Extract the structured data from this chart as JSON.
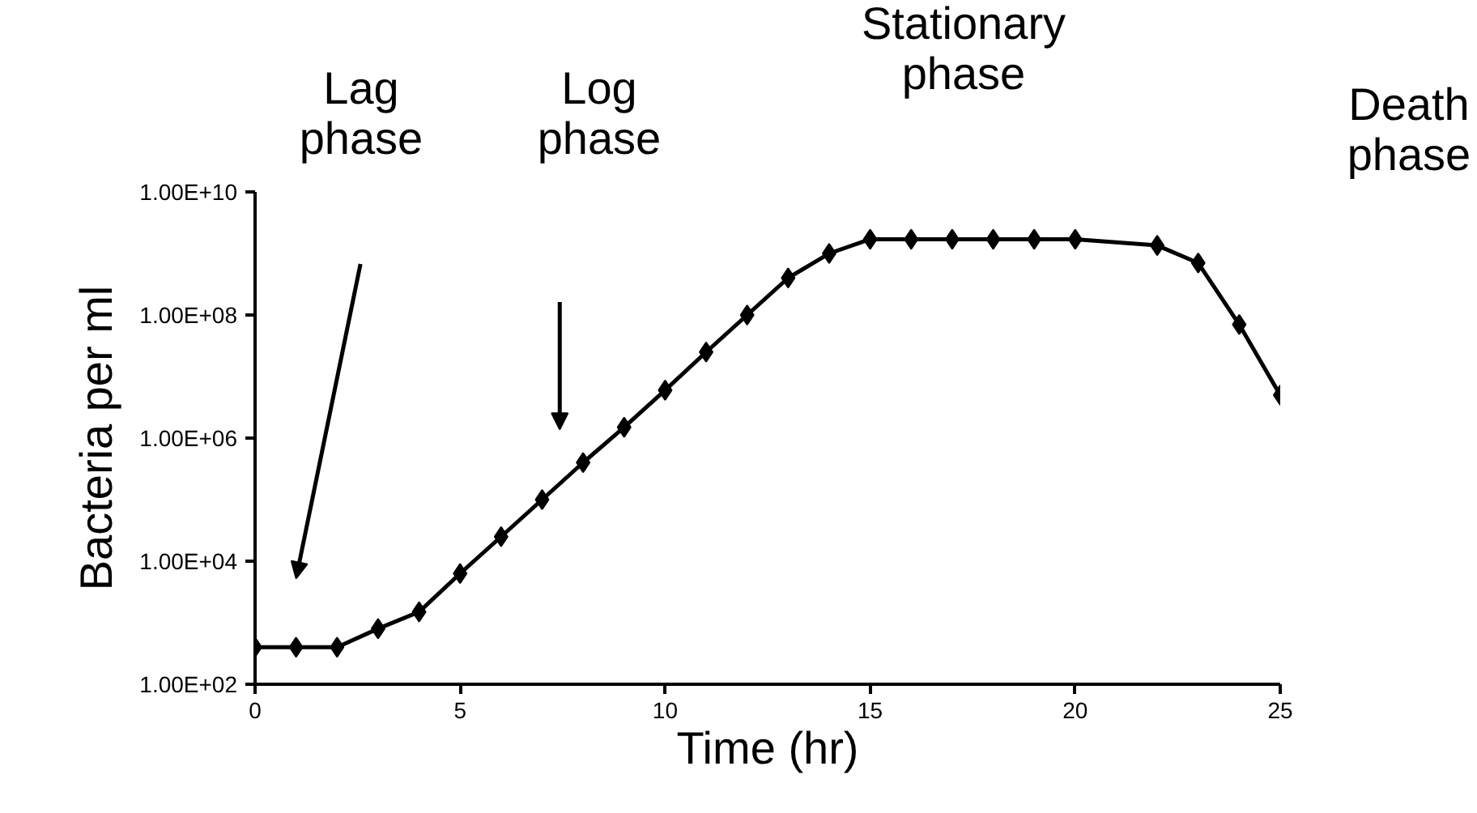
{
  "chart_data": {
    "type": "line",
    "xlabel": "Time (hr)",
    "ylabel": "Bacteria per ml",
    "log": "y",
    "grid": false,
    "marker": "diamond",
    "line_style": "solid",
    "x": [
      0,
      1,
      2,
      3,
      4,
      5,
      6,
      7,
      8,
      9,
      10,
      11,
      12,
      13,
      14,
      15,
      16,
      17,
      18,
      19,
      20,
      22,
      23,
      24,
      25
    ],
    "series": [
      {
        "color": "#000000",
        "values": [
          400,
          400,
          400,
          800,
          1500,
          6300,
          25000,
          100000,
          400000,
          1500000,
          6000000,
          25000000,
          100000000,
          400000000,
          1000000000,
          1700000000,
          1700000000,
          1700000000,
          1700000000,
          1700000000,
          1700000000,
          1350000000,
          700000000,
          70000000,
          5000000
        ]
      }
    ],
    "xlim": [
      0,
      25
    ],
    "xticks": [
      0,
      5,
      10,
      15,
      20,
      25
    ],
    "ylim": [
      100,
      10000000000
    ],
    "yticks": [
      {
        "value": 100,
        "label": "1.00E+02"
      },
      {
        "value": 10000,
        "label": "1.00E+04"
      },
      {
        "value": 1000000,
        "label": "1.00E+06"
      },
      {
        "value": 100000000,
        "label": "1.00E+08"
      },
      {
        "value": 10000000000,
        "label": "1.00E+10"
      }
    ],
    "annotations": [
      "Lag phase",
      "Log phase",
      "Stationary phase",
      "Death phase"
    ]
  }
}
